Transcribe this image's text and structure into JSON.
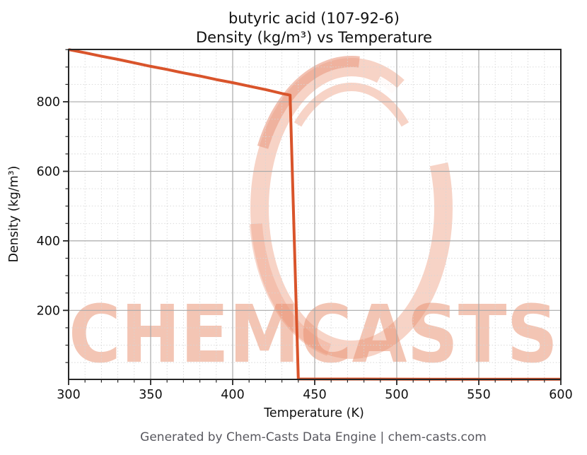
{
  "title": {
    "line1": "butyric acid (107-92-6)",
    "line2": "Density (kg/m³) vs Temperature"
  },
  "axes": {
    "xlabel": "Temperature (K)",
    "ylabel": "Density (kg/m³)"
  },
  "footer": "Generated by Chem-Casts Data Engine | chem-casts.com",
  "watermark": {
    "text": "CHEMCASTS",
    "logo": "chemcasts-brush-ring-logo"
  },
  "colors": {
    "line": "#d9542b",
    "major_grid": "#a9a9a9",
    "minor_grid": "#d6d6d6",
    "spine": "#262626",
    "title_text": "#111111",
    "tick_text": "#111111",
    "footer_text": "#58585f",
    "watermark": "#f0a78e",
    "watermark_text": "#e8906f",
    "background": "#ffffff"
  },
  "chart_data": {
    "type": "line",
    "title": "butyric acid (107-92-6) — Density (kg/m³) vs Temperature",
    "xlabel": "Temperature (K)",
    "ylabel": "Density (kg/m³)",
    "xlim": [
      300,
      600
    ],
    "ylim": [
      1.5,
      950.5
    ],
    "x_major_ticks": [
      300,
      350,
      400,
      450,
      500,
      550,
      600
    ],
    "y_major_ticks": [
      200,
      400,
      600,
      800
    ],
    "x_minor_step": 10,
    "y_minor_step": 50,
    "grid": "major solid, minor dotted",
    "legend": "none",
    "series": [
      {
        "name": "density",
        "points": [
          [
            300,
            950
          ],
          [
            310,
            941
          ],
          [
            320,
            931
          ],
          [
            330,
            922
          ],
          [
            340,
            912
          ],
          [
            350,
            902
          ],
          [
            360,
            893
          ],
          [
            370,
            883
          ],
          [
            380,
            874
          ],
          [
            390,
            864
          ],
          [
            400,
            855
          ],
          [
            410,
            845
          ],
          [
            420,
            835
          ],
          [
            430,
            824
          ],
          [
            435,
            819
          ],
          [
            440,
            2.7
          ],
          [
            460,
            2.6
          ],
          [
            480,
            2.5
          ],
          [
            500,
            2.3
          ],
          [
            520,
            2.2
          ],
          [
            540,
            2.1
          ],
          [
            560,
            2.0
          ],
          [
            580,
            1.95
          ],
          [
            600,
            1.9
          ]
        ]
      }
    ]
  }
}
